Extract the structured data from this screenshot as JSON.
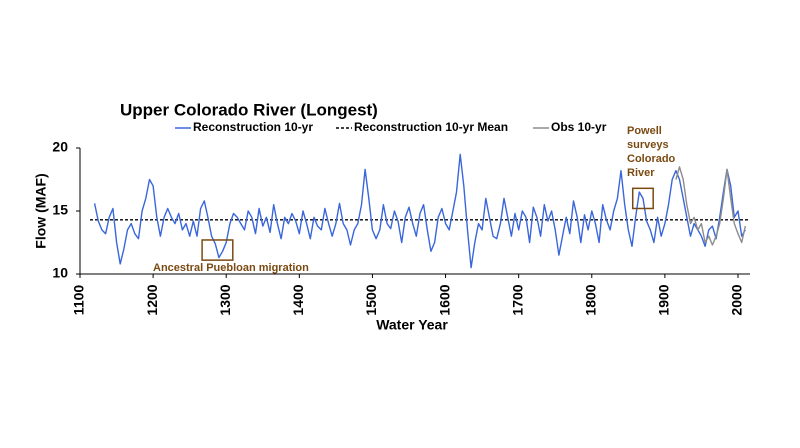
{
  "chart_data": {
    "type": "line",
    "title": "Upper Colorado River (Longest)",
    "x_label": "Water Year",
    "y_label": "Flow (MAF)",
    "xlim": [
      1100,
      2015
    ],
    "xticks": [
      1100,
      1200,
      1300,
      1400,
      1500,
      1600,
      1700,
      1800,
      1900,
      2000
    ],
    "ylim": [
      10,
      20
    ],
    "yticks": [
      10,
      15,
      20
    ],
    "series": [
      {
        "name": "Reconstruction  10-yr",
        "color": "#3a66dc",
        "x": [
          1120,
          1125,
          1130,
          1135,
          1140,
          1145,
          1150,
          1155,
          1160,
          1165,
          1170,
          1175,
          1180,
          1185,
          1190,
          1195,
          1200,
          1205,
          1210,
          1215,
          1220,
          1225,
          1230,
          1235,
          1240,
          1245,
          1250,
          1255,
          1260,
          1265,
          1270,
          1275,
          1280,
          1285,
          1290,
          1295,
          1300,
          1305,
          1310,
          1315,
          1320,
          1325,
          1330,
          1335,
          1340,
          1345,
          1350,
          1355,
          1360,
          1365,
          1370,
          1375,
          1380,
          1385,
          1390,
          1395,
          1400,
          1405,
          1410,
          1415,
          1420,
          1425,
          1430,
          1435,
          1440,
          1445,
          1450,
          1455,
          1460,
          1465,
          1470,
          1475,
          1480,
          1485,
          1490,
          1495,
          1500,
          1505,
          1510,
          1515,
          1520,
          1525,
          1530,
          1535,
          1540,
          1545,
          1550,
          1555,
          1560,
          1565,
          1570,
          1575,
          1580,
          1585,
          1590,
          1595,
          1600,
          1605,
          1610,
          1615,
          1620,
          1625,
          1630,
          1635,
          1640,
          1645,
          1650,
          1655,
          1660,
          1665,
          1670,
          1675,
          1680,
          1685,
          1690,
          1695,
          1700,
          1705,
          1710,
          1715,
          1720,
          1725,
          1730,
          1735,
          1740,
          1745,
          1750,
          1755,
          1760,
          1765,
          1770,
          1775,
          1780,
          1785,
          1790,
          1795,
          1800,
          1805,
          1810,
          1815,
          1820,
          1825,
          1830,
          1835,
          1840,
          1845,
          1850,
          1855,
          1860,
          1865,
          1870,
          1875,
          1880,
          1885,
          1890,
          1895,
          1900,
          1905,
          1910,
          1915,
          1920,
          1925,
          1930,
          1935,
          1940,
          1945,
          1950,
          1955,
          1960,
          1965,
          1970,
          1975,
          1980,
          1985,
          1990,
          1995,
          2000,
          2005,
          2010
        ],
        "values": [
          15.6,
          14.2,
          13.5,
          13.2,
          14.5,
          15.2,
          12.5,
          10.8,
          12,
          13.5,
          14,
          13.2,
          12.8,
          15,
          16,
          17.5,
          17,
          14.5,
          13,
          14.5,
          15.2,
          14.5,
          14,
          14.8,
          13.5,
          14,
          13,
          14.2,
          13,
          15.2,
          15.8,
          14.5,
          13,
          12.4,
          11.3,
          11.8,
          12.5,
          14,
          14.8,
          14.5,
          14,
          13.5,
          15,
          14.5,
          13.2,
          15.2,
          13.8,
          14.5,
          13.3,
          15.5,
          14,
          12.8,
          14.5,
          14,
          14.8,
          14.2,
          13.2,
          15,
          14,
          12.8,
          14.5,
          13.8,
          13.5,
          15.2,
          14,
          13,
          14,
          15.6,
          14,
          13.5,
          12.3,
          13.5,
          14,
          15.5,
          18.3,
          16,
          13.5,
          12.8,
          13.5,
          15.5,
          14,
          13.6,
          15,
          14.2,
          12.5,
          14.5,
          15.3,
          14,
          13,
          14.8,
          15.5,
          13.5,
          11.8,
          12.5,
          14.5,
          15.2,
          14,
          13.5,
          15,
          16.5,
          19.5,
          17,
          13.5,
          10.5,
          12.5,
          14,
          13.5,
          16,
          14.5,
          13,
          12.8,
          14,
          16,
          14.5,
          13,
          14.8,
          13.5,
          15,
          14.5,
          12.5,
          15.3,
          14.5,
          13,
          15.5,
          14.2,
          15,
          13.5,
          11.5,
          13,
          14.5,
          13.2,
          15.8,
          14.5,
          12.5,
          14.7,
          13.5,
          15,
          14,
          12.5,
          15.5,
          14.3,
          13.5,
          15,
          16,
          18.2,
          15.5,
          13.5,
          12.2,
          14.5,
          16.5,
          16,
          14.2,
          13.5,
          12.5,
          14.5,
          13,
          14,
          15.5,
          17.5,
          18.2,
          17.5,
          16,
          14.5,
          13,
          14,
          13.5,
          13,
          12.2,
          13.5,
          13.8,
          12.8,
          14.5,
          16.5,
          18.3,
          17,
          14.5,
          15,
          13,
          13.5
        ]
      },
      {
        "name": "Obs 10-yr",
        "color": "#8c8c8c",
        "x": [
          1915,
          1920,
          1925,
          1930,
          1935,
          1940,
          1945,
          1950,
          1955,
          1960,
          1965,
          1970,
          1975,
          1980,
          1985,
          1990,
          1995,
          2000,
          2005,
          2010
        ],
        "values": [
          17.5,
          18.5,
          17.5,
          15.5,
          14,
          14.5,
          13.5,
          14,
          12.5,
          13,
          12.3,
          13,
          14,
          16,
          18.3,
          16,
          14,
          13.2,
          12.5,
          13.8
        ]
      }
    ],
    "mean_line": {
      "name": "Reconstruction  10-yr Mean",
      "value": 14.3,
      "color": "#000000"
    },
    "annotations": [
      {
        "lines": [
          "Ancestral Puebloan migration"
        ],
        "span": [
          1267,
          1309
        ],
        "band": [
          11.1,
          12.7
        ],
        "color": "#7b4a12"
      },
      {
        "lines": [
          "Powell",
          "surveys",
          "Colorado",
          "River"
        ],
        "span": [
          1856,
          1884
        ],
        "band": [
          15.2,
          16.8
        ],
        "color": "#7b4a12"
      }
    ]
  }
}
